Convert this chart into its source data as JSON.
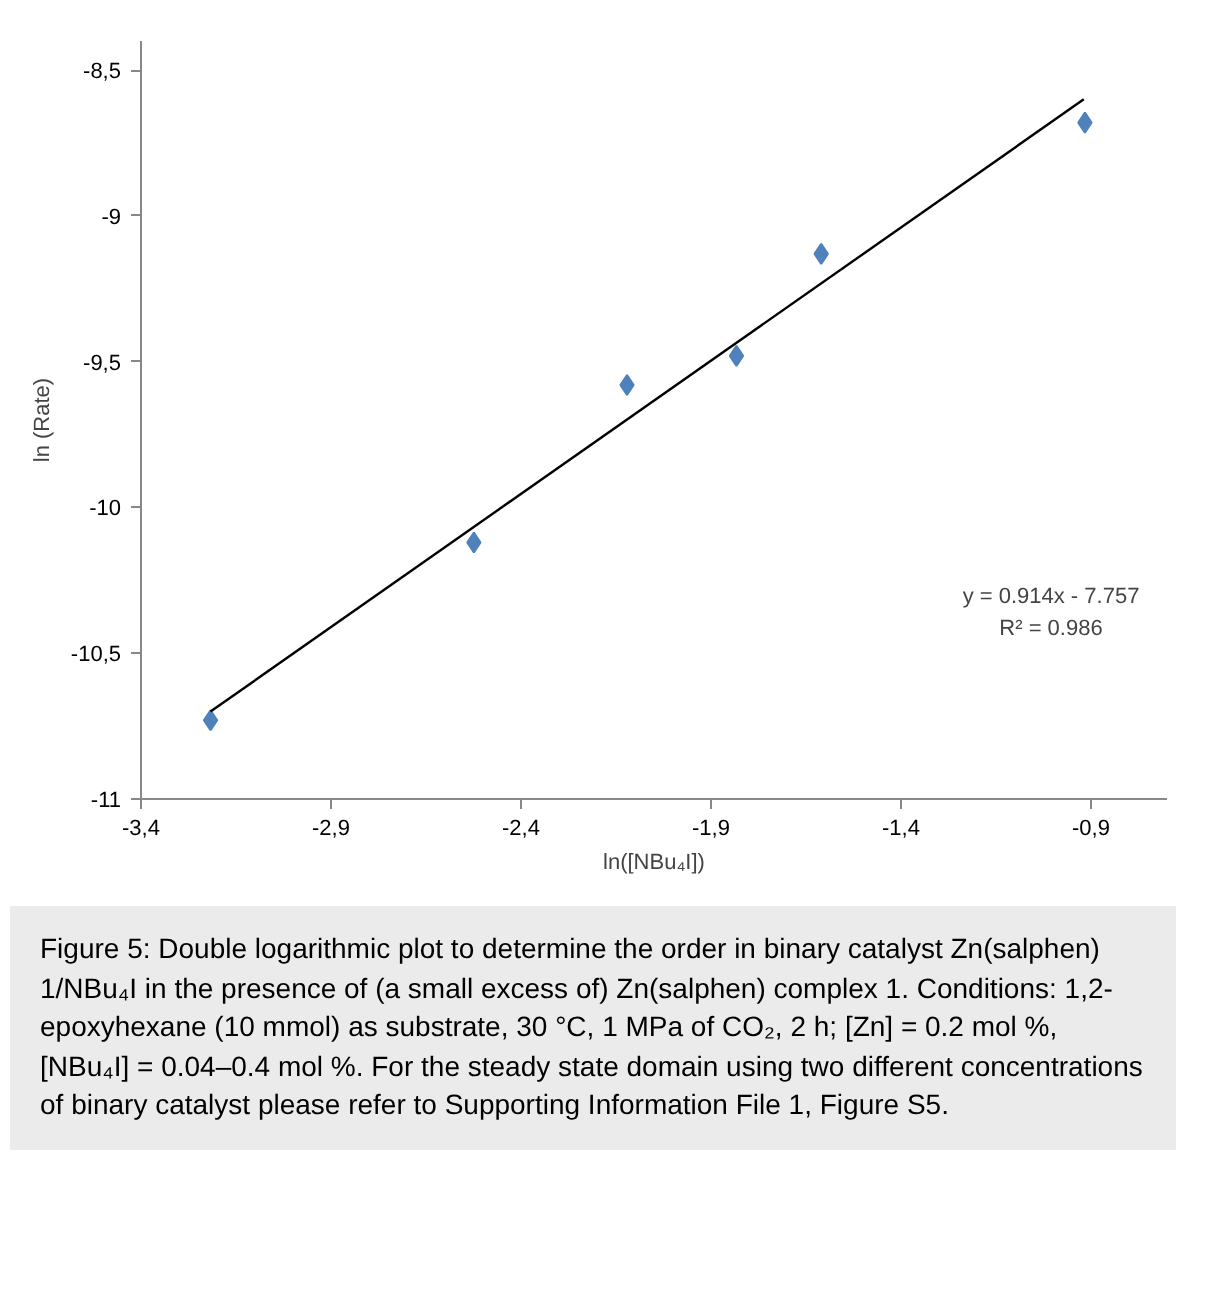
{
  "chart_data": {
    "type": "scatter",
    "xlabel": "ln([NBu₄I])",
    "ylabel": "ln (Rate)",
    "xlim": [
      -3.4,
      -0.7
    ],
    "ylim": [
      -11,
      -8.4
    ],
    "xticks": [
      {
        "value": -3.4,
        "label": "-3,4"
      },
      {
        "value": -2.9,
        "label": "-2,9"
      },
      {
        "value": -2.4,
        "label": "-2,4"
      },
      {
        "value": -1.9,
        "label": "-1,9"
      },
      {
        "value": -1.4,
        "label": "-1,4"
      },
      {
        "value": -0.9,
        "label": "-0,9"
      }
    ],
    "yticks": [
      -11,
      {
        "value": -10.5,
        "label": "-10,5"
      },
      -10,
      {
        "value": -9.5,
        "label": "-9,5"
      },
      -9,
      {
        "value": -8.5,
        "label": "-8,5"
      }
    ],
    "grid": false,
    "marker": "diamond",
    "series": [
      {
        "color": "#4f81bd",
        "x": [
          -3.217,
          -2.524,
          -2.121,
          -1.833,
          -1.61,
          -0.916
        ],
        "values": [
          -10.73,
          -10.12,
          -9.58,
          -9.48,
          -9.13,
          -8.68
        ]
      },
      {
        "type": "line",
        "color": "#000000",
        "marker": "none",
        "line_style": "solid",
        "x": [
          -3.217,
          -0.919
        ],
        "values": [
          -10.7,
          -8.6
        ]
      }
    ],
    "annotations": [
      "y = 0.914x - 7.757",
      "R² = 0.986",
      "Figure 5: Double logarithmic plot to determine the order in binary catalyst Zn(salphen) 1/NBu₄I in the presence of (a small excess of) Zn(salphen) complex 1. Conditions: 1,2-epoxyhexane (10 mmol) as substrate, 30 °C, 1 MPa of CO₂, 2 h; [Zn] = 0.2 mol %, [NBu₄I] = 0.04–0.4 mol %. For the steady state domain using two different concentrations of binary catalyst please refer to Supporting Information File 1, Figure S5."
    ]
  }
}
